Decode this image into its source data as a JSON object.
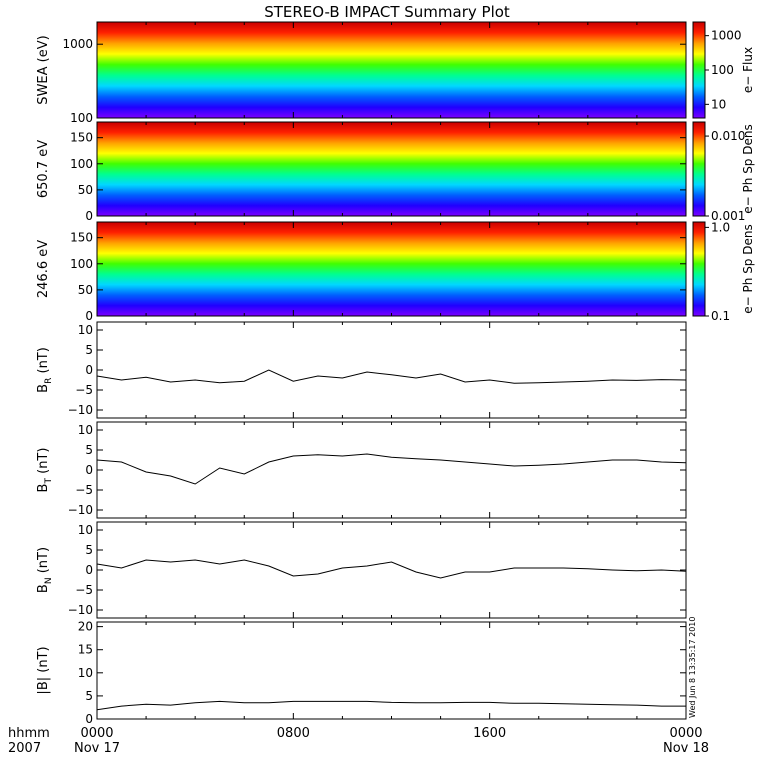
{
  "title": "STEREO-B IMPACT Summary Plot",
  "stamp": "Wed Jun  8 13:35:17 2010",
  "time_axis": {
    "row1_label": "hhmm",
    "row2_label": "2007",
    "ticks": [
      {
        "hours": 0,
        "label": "0000",
        "date": "Nov 17"
      },
      {
        "hours": 8,
        "label": "0800",
        "date": ""
      },
      {
        "hours": 16,
        "label": "1600",
        "date": ""
      },
      {
        "hours": 24,
        "label": "0000",
        "date": "Nov 18"
      }
    ]
  },
  "colors": {
    "colormap": [
      "#7b00ff",
      "#2000ff",
      "#0060ff",
      "#00d8ff",
      "#00ff90",
      "#40ff00",
      "#ffff00",
      "#ffa000",
      "#ff2000",
      "#c80000"
    ]
  },
  "chart_data": [
    {
      "type": "heatmap",
      "ylabel": "SWEA (eV)",
      "colorbar_label": "e−  Flux",
      "y_scale": "log",
      "ylim": [
        100,
        2000
      ],
      "yticks": [
        {
          "v": 100,
          "label": "100"
        },
        {
          "v": 1000,
          "label": "1000"
        }
      ],
      "colorbar_scale": "log",
      "colorbar_range": [
        4,
        2500
      ],
      "colorbar_ticks": [
        {
          "v": 10,
          "label": "10"
        },
        {
          "v": 100,
          "label": "100"
        },
        {
          "v": 1000,
          "label": "1000"
        }
      ]
    },
    {
      "type": "heatmap",
      "ylabel": "650.7 eV",
      "colorbar_label": "e−  Ph Sp Dens",
      "ylim": [
        0,
        180
      ],
      "yticks": [
        {
          "v": 0,
          "label": "0"
        },
        {
          "v": 50,
          "label": "50"
        },
        {
          "v": 100,
          "label": "100"
        },
        {
          "v": 150,
          "label": "150"
        }
      ],
      "colorbar_scale": "log",
      "colorbar_range": [
        0.001,
        0.015
      ],
      "colorbar_ticks": [
        {
          "v": 0.001,
          "label": "0.001"
        },
        {
          "v": 0.01,
          "label": "0.010"
        }
      ]
    },
    {
      "type": "heatmap",
      "ylabel": "246.6 eV",
      "colorbar_label": "e−  Ph Sp Dens",
      "ylim": [
        0,
        180
      ],
      "yticks": [
        {
          "v": 0,
          "label": "0"
        },
        {
          "v": 50,
          "label": "50"
        },
        {
          "v": 100,
          "label": "100"
        },
        {
          "v": 150,
          "label": "150"
        }
      ],
      "colorbar_scale": "log",
      "colorbar_range": [
        0.1,
        1.15
      ],
      "colorbar_ticks": [
        {
          "v": 0.1,
          "label": "0.1"
        },
        {
          "v": 1.0,
          "label": "1.0"
        }
      ]
    },
    {
      "type": "line",
      "ylabel": "B",
      "ylabel_sub": "R",
      "ylabel_unit": " (nT)",
      "ylim": [
        -12,
        12
      ],
      "yticks": [
        {
          "v": -10,
          "label": "−10"
        },
        {
          "v": -5,
          "label": "−5"
        },
        {
          "v": 0,
          "label": "0"
        },
        {
          "v": 5,
          "label": "5"
        },
        {
          "v": 10,
          "label": "10"
        }
      ],
      "series": [
        {
          "x": [
            0,
            1,
            2,
            3,
            4,
            5,
            6,
            7,
            8,
            9,
            10,
            11,
            12,
            13,
            14,
            15,
            16,
            17,
            18,
            19,
            20,
            21,
            22,
            23,
            24
          ],
          "y": [
            -1.5,
            -2.5,
            -1.8,
            -3.0,
            -2.5,
            -3.2,
            -2.8,
            0.0,
            -2.8,
            -1.5,
            -2.0,
            -0.5,
            -1.2,
            -2.0,
            -1.0,
            -3.0,
            -2.5,
            -3.3,
            -3.2,
            -3.0,
            -2.8,
            -2.5,
            -2.6,
            -2.4,
            -2.5
          ]
        }
      ]
    },
    {
      "type": "line",
      "ylabel": "B",
      "ylabel_sub": "T",
      "ylabel_unit": " (nT)",
      "ylim": [
        -12,
        12
      ],
      "yticks": [
        {
          "v": -10,
          "label": "−10"
        },
        {
          "v": -5,
          "label": "−5"
        },
        {
          "v": 0,
          "label": "0"
        },
        {
          "v": 5,
          "label": "5"
        },
        {
          "v": 10,
          "label": "10"
        }
      ],
      "series": [
        {
          "x": [
            0,
            1,
            2,
            3,
            4,
            5,
            6,
            7,
            8,
            9,
            10,
            11,
            12,
            13,
            14,
            15,
            16,
            17,
            18,
            19,
            20,
            21,
            22,
            23,
            24
          ],
          "y": [
            2.5,
            2.0,
            -0.5,
            -1.5,
            -3.5,
            0.5,
            -1.0,
            2.0,
            3.5,
            3.8,
            3.5,
            4.0,
            3.2,
            2.8,
            2.5,
            2.0,
            1.5,
            1.0,
            1.2,
            1.5,
            2.0,
            2.5,
            2.5,
            2.0,
            1.8
          ]
        }
      ]
    },
    {
      "type": "line",
      "ylabel": "B",
      "ylabel_sub": "N",
      "ylabel_unit": " (nT)",
      "ylim": [
        -12,
        12
      ],
      "yticks": [
        {
          "v": -10,
          "label": "−10"
        },
        {
          "v": -5,
          "label": "−5"
        },
        {
          "v": 0,
          "label": "0"
        },
        {
          "v": 5,
          "label": "5"
        },
        {
          "v": 10,
          "label": "10"
        }
      ],
      "series": [
        {
          "x": [
            0,
            1,
            2,
            3,
            4,
            5,
            6,
            7,
            8,
            9,
            10,
            11,
            12,
            13,
            14,
            15,
            16,
            17,
            18,
            19,
            20,
            21,
            22,
            23,
            24
          ],
          "y": [
            1.5,
            0.5,
            2.5,
            2.0,
            2.5,
            1.5,
            2.5,
            1.0,
            -1.5,
            -1.0,
            0.5,
            1.0,
            2.0,
            -0.5,
            -2.0,
            -0.5,
            -0.5,
            0.5,
            0.5,
            0.5,
            0.3,
            0.0,
            -0.2,
            0.0,
            -0.3
          ]
        }
      ]
    },
    {
      "type": "line",
      "ylabel": "|B| (nT)",
      "ylim": [
        0,
        21
      ],
      "yticks": [
        {
          "v": 0,
          "label": "0"
        },
        {
          "v": 5,
          "label": "5"
        },
        {
          "v": 10,
          "label": "10"
        },
        {
          "v": 15,
          "label": "15"
        },
        {
          "v": 20,
          "label": "20"
        }
      ],
      "series": [
        {
          "x": [
            0,
            1,
            2,
            3,
            4,
            5,
            6,
            7,
            8,
            9,
            10,
            11,
            12,
            13,
            14,
            15,
            16,
            17,
            18,
            19,
            20,
            21,
            22,
            23,
            24
          ],
          "y": [
            2.0,
            2.8,
            3.2,
            3.0,
            3.5,
            3.8,
            3.5,
            3.5,
            3.8,
            3.8,
            3.8,
            3.8,
            3.6,
            3.5,
            3.5,
            3.6,
            3.6,
            3.4,
            3.4,
            3.3,
            3.2,
            3.1,
            3.0,
            2.8,
            2.8
          ]
        }
      ]
    }
  ]
}
